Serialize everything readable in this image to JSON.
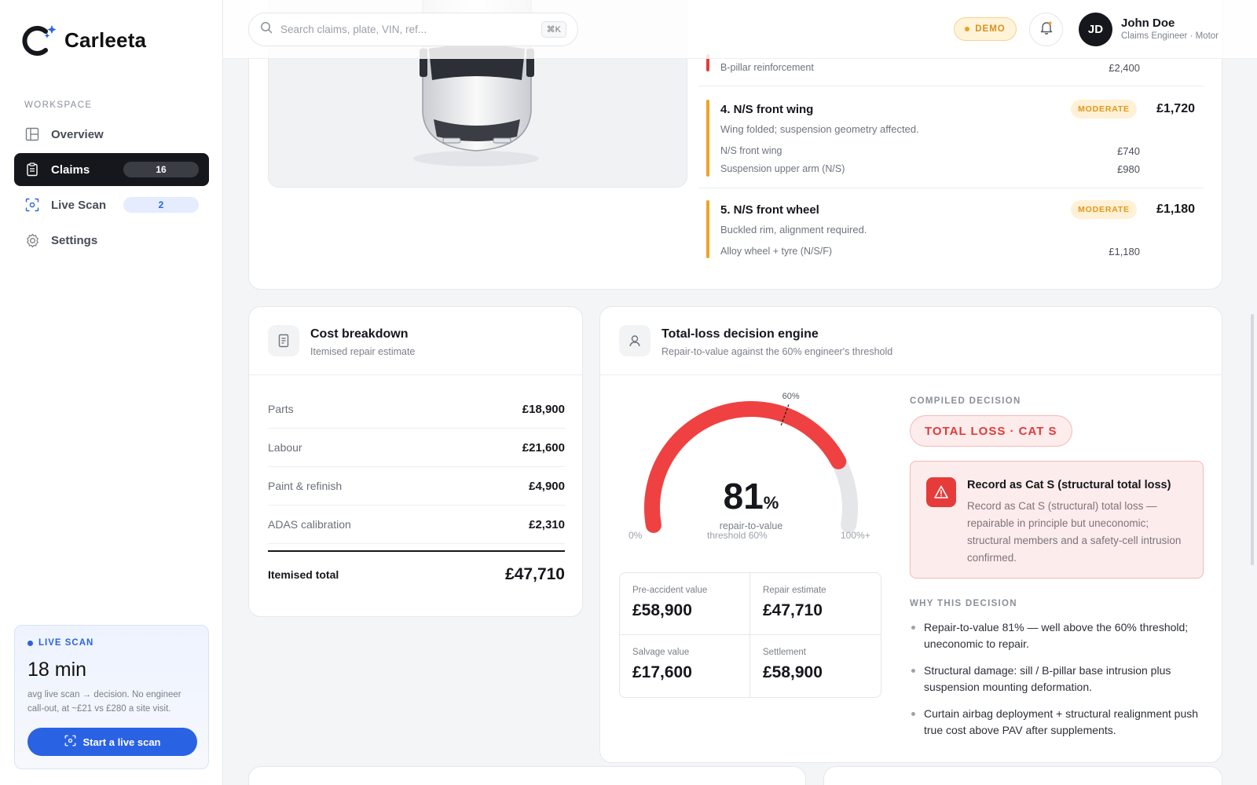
{
  "brand": {
    "name": "Carleeta"
  },
  "sidebar": {
    "section_label": "WORKSPACE",
    "items": [
      {
        "label": "Overview",
        "icon": "layout-icon",
        "count": ""
      },
      {
        "label": "Claims",
        "icon": "clipboard-icon",
        "count": "16",
        "active": true
      },
      {
        "label": "Live Scan",
        "icon": "scan-icon",
        "count": "2"
      },
      {
        "label": "Settings",
        "icon": "gear-icon",
        "count": ""
      }
    ],
    "scan_card": {
      "tag": "LIVE SCAN",
      "big": "18 min",
      "desc": "avg live scan → decision. No engineer call-out, at ~£21 vs £280 a site visit.",
      "button": "Start a live scan"
    }
  },
  "topbar": {
    "search_placeholder": "Search claims, plate, VIN, ref...",
    "shortcut": "⌘K",
    "demo_label": "DEMO",
    "user": {
      "initials": "JD",
      "name": "John Doe",
      "role": "Claims Engineer · Motor"
    }
  },
  "damage": {
    "partial_line": {
      "label": "B-pillar reinforcement",
      "amount": "£2,400"
    },
    "items": [
      {
        "title": "4. N/S front wing",
        "severity": "MODERATE",
        "total": "£1,720",
        "desc": "Wing folded; suspension geometry affected.",
        "lines": [
          {
            "label": "N/S front wing",
            "amount": "£740"
          },
          {
            "label": "Suspension upper arm (N/S)",
            "amount": "£980"
          }
        ]
      },
      {
        "title": "5. N/S front wheel",
        "severity": "MODERATE",
        "total": "£1,180",
        "desc": "Buckled rim, alignment required.",
        "lines": [
          {
            "label": "Alloy wheel + tyre (N/S/F)",
            "amount": "£1,180"
          }
        ]
      }
    ]
  },
  "cost": {
    "title": "Cost breakdown",
    "subtitle": "Itemised repair estimate",
    "rows": [
      {
        "label": "Parts",
        "value": "£18,900"
      },
      {
        "label": "Labour",
        "value": "£21,600"
      },
      {
        "label": "Paint & refinish",
        "value": "£4,900"
      },
      {
        "label": "ADAS calibration",
        "value": "£2,310"
      }
    ],
    "total_label": "Itemised total",
    "total_value": "£47,710"
  },
  "decision": {
    "title": "Total-loss decision engine",
    "subtitle": "Repair-to-value against the 60% engineer's threshold",
    "gauge": {
      "value": 81,
      "threshold": 60,
      "value_label": "81",
      "unit": "%",
      "caption": "repair-to-value",
      "threshold_label": "60%",
      "min_label": "0%",
      "mid_label": "threshold 60%",
      "max_label": "100%+",
      "fill_color": "#ef4141",
      "track_color": "#e5e6e9"
    },
    "stats": [
      {
        "label": "Pre-accident value",
        "value": "£58,900"
      },
      {
        "label": "Repair estimate",
        "value": "£47,710"
      },
      {
        "label": "Salvage value",
        "value": "£17,600"
      },
      {
        "label": "Settlement",
        "value": "£58,900"
      }
    ],
    "compiled_label": "COMPILED DECISION",
    "verdict": "TOTAL LOSS · CAT S",
    "alert_title": "Record as Cat S (structural total loss)",
    "alert_text": "Record as Cat S (structural) total loss — repairable in principle but uneconomic; structural members and a safety-cell intrusion confirmed.",
    "why_label": "WHY THIS DECISION",
    "reasons": [
      "Repair-to-value 81% — well above the 60% threshold; uneconomic to repair.",
      "Structural damage: sill / B-pillar base intrusion plus suspension mounting deformation.",
      "Curtain airbag deployment + structural realignment push true cost above PAV after supplements."
    ]
  }
}
